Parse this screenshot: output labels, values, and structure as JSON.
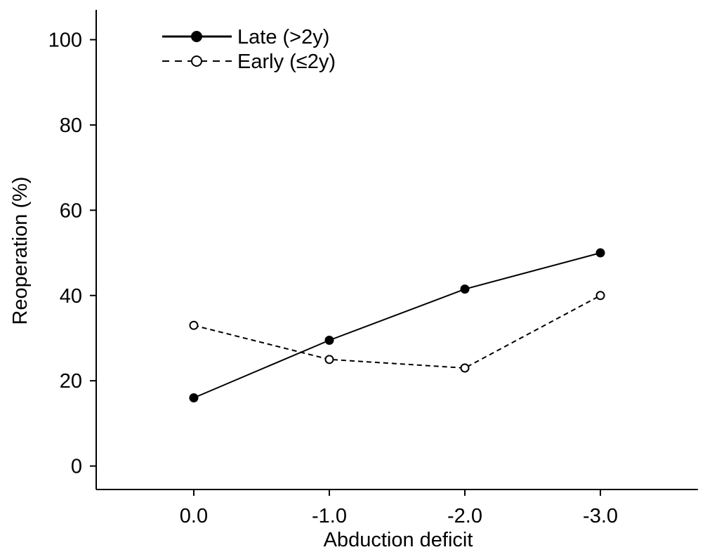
{
  "chart_data": {
    "type": "line",
    "xlabel": "Abduction deficit",
    "ylabel": "Reoperation (%)",
    "categories": [
      "0.0",
      "-1.0",
      "-2.0",
      "-3.0"
    ],
    "x": [
      0.0,
      -1.0,
      -2.0,
      -3.0
    ],
    "xlim": [
      0.72,
      -3.72
    ],
    "ylim": [
      -5.5,
      107
    ],
    "yticks": [
      0,
      20,
      40,
      60,
      80,
      100
    ],
    "grid": false,
    "legend_position": "top-left",
    "series": [
      {
        "name": "Late (>2y)",
        "values": [
          16,
          29.5,
          41.5,
          50
        ],
        "line": "solid",
        "marker": "filled-circle",
        "color": "#000000"
      },
      {
        "name": "Early (≤2y)",
        "values": [
          33,
          25,
          23,
          40
        ],
        "line": "dashed",
        "marker": "open-circle",
        "color": "#000000"
      }
    ]
  }
}
